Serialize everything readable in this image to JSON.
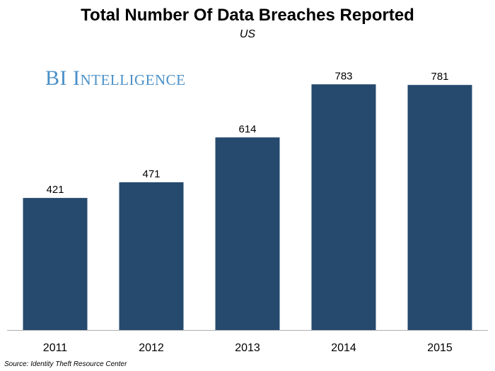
{
  "brand": {
    "text": "BI Intelligence",
    "color": "#4a90c8"
  },
  "footer": {
    "source": "Source: Identity Theft Resource Center"
  },
  "chart_data": {
    "type": "bar",
    "title": "Total Number Of Data Breaches Reported",
    "subtitle": "US",
    "categories": [
      "2011",
      "2012",
      "2013",
      "2014",
      "2015"
    ],
    "values": [
      421,
      471,
      614,
      783,
      781
    ],
    "data_labels": [
      "421",
      "471",
      "614",
      "783",
      "781"
    ],
    "xlabel": "",
    "ylabel": "",
    "ylim": [
      0,
      800
    ],
    "grid": false,
    "legend": "none",
    "bar_color": "#264a6e",
    "axis_color": "#b0b0b0"
  }
}
